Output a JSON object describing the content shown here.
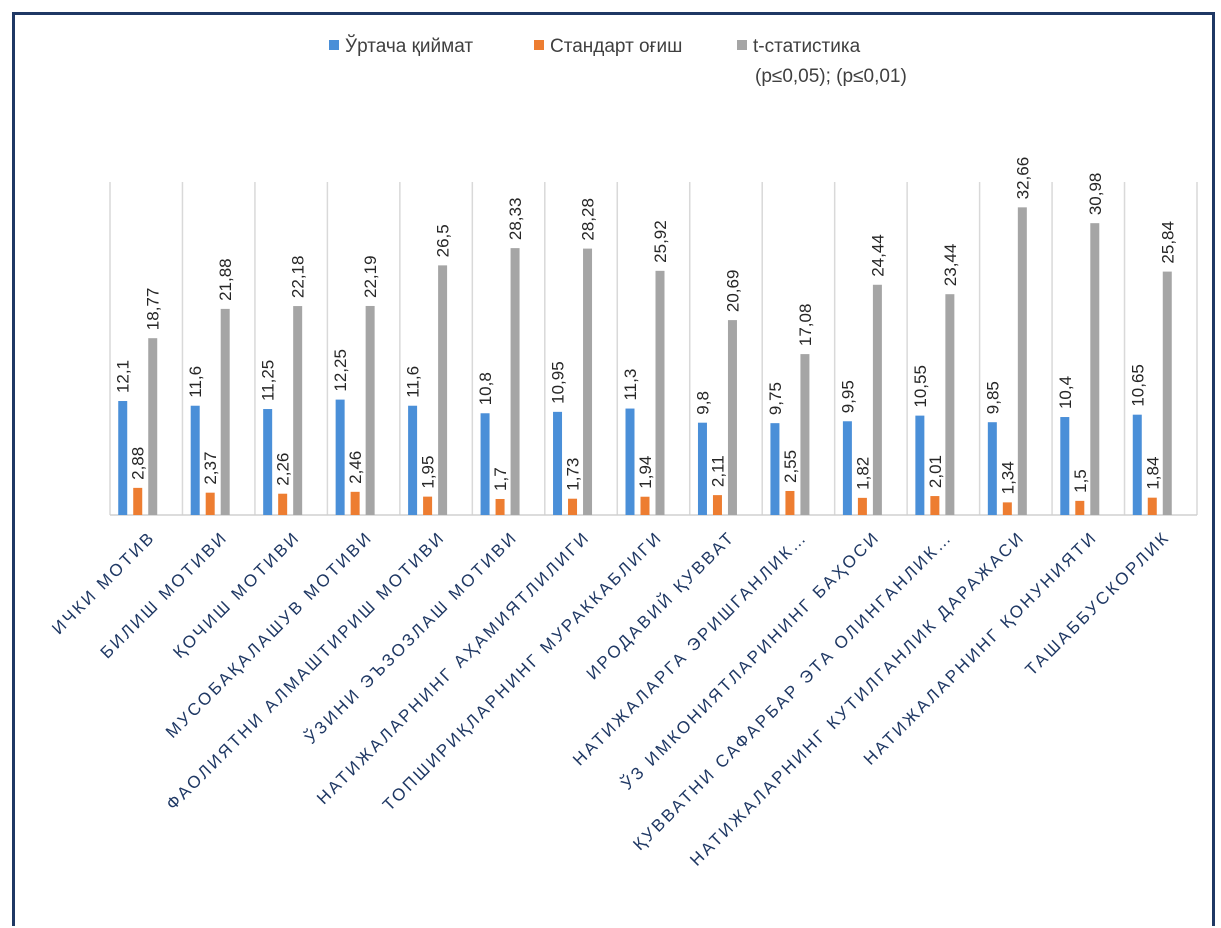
{
  "chart_data": {
    "type": "bar",
    "title": "",
    "xlabel": "",
    "ylabel": "",
    "ylim": [
      0,
      36
    ],
    "grid": "vertical category separators",
    "legend_position": "top",
    "legend_note": "(p≤0,05); (p≤0,01)",
    "categories": [
      "ИЧКИ МОТИВ",
      "БИЛИШ МОТИВИ",
      "ҚОЧИШ МОТИВИ",
      "МУСОБАҚАЛАШУВ МОТИВИ",
      "ФАОЛИЯТНИ АЛМАШТИРИШ МОТИВИ",
      "ЎЗИНИ ЭЪЗОЗЛАШ МОТИВИ",
      "НАТИЖАЛАРНИНГ АҲАМИЯТЛИЛИГИ",
      "ТОПШИРИҚЛАРНИНГ МУРАККАБЛИГИ",
      "ИРОДАВИЙ ҚУВВАТ",
      "НАТИЖАЛАРГА ЭРИШГАНЛИК…",
      "ЎЗ ИМКОНИЯТЛАРИНИНГ БАҲОСИ",
      "ҚУВВАТНИ САФАРБАР ЭТА ОЛИНГАНЛИК…",
      "НАТИЖАЛАРНИНГ КУТИЛГАНЛИК ДАРАЖАСИ",
      "НАТИЖАЛАРНИНГ ҚОНУНИЯТИ",
      "ТАШАББУСКОРЛИК"
    ],
    "series": [
      {
        "name": "Ўртача қиймат",
        "color": "#4a8fd8",
        "values": [
          12.1,
          11.6,
          11.25,
          12.25,
          11.6,
          10.8,
          10.95,
          11.3,
          9.8,
          9.75,
          9.95,
          10.55,
          9.85,
          10.4,
          10.65
        ],
        "labels": [
          "12,1",
          "11,6",
          "11,25",
          "12,25",
          "11,6",
          "10,8",
          "10,95",
          "11,3",
          "9,8",
          "9,75",
          "9,95",
          "10,55",
          "9,85",
          "10,4",
          "10,65"
        ]
      },
      {
        "name": "Стандарт оғиш",
        "color": "#ed7d31",
        "values": [
          2.88,
          2.37,
          2.26,
          2.46,
          1.95,
          1.7,
          1.73,
          1.94,
          2.11,
          2.55,
          1.82,
          2.01,
          1.34,
          1.5,
          1.84
        ],
        "labels": [
          "2,88",
          "2,37",
          "2,26",
          "2,46",
          "1,95",
          "1,7",
          "1,73",
          "1,94",
          "2,11",
          "2,55",
          "1,82",
          "2,01",
          "1,34",
          "1,5",
          "1,84"
        ]
      },
      {
        "name": "t-статистика",
        "color": "#a5a5a5",
        "values": [
          18.77,
          21.88,
          22.18,
          22.19,
          26.5,
          28.33,
          28.28,
          25.92,
          20.69,
          17.08,
          24.44,
          23.44,
          32.66,
          30.98,
          25.84
        ],
        "labels": [
          "18,77",
          "21,88",
          "22,18",
          "22,19",
          "26,5",
          "28,33",
          "28,28",
          "25,92",
          "20,69",
          "17,08",
          "24,44",
          "23,44",
          "32,66",
          "30,98",
          "25,84"
        ]
      }
    ]
  }
}
